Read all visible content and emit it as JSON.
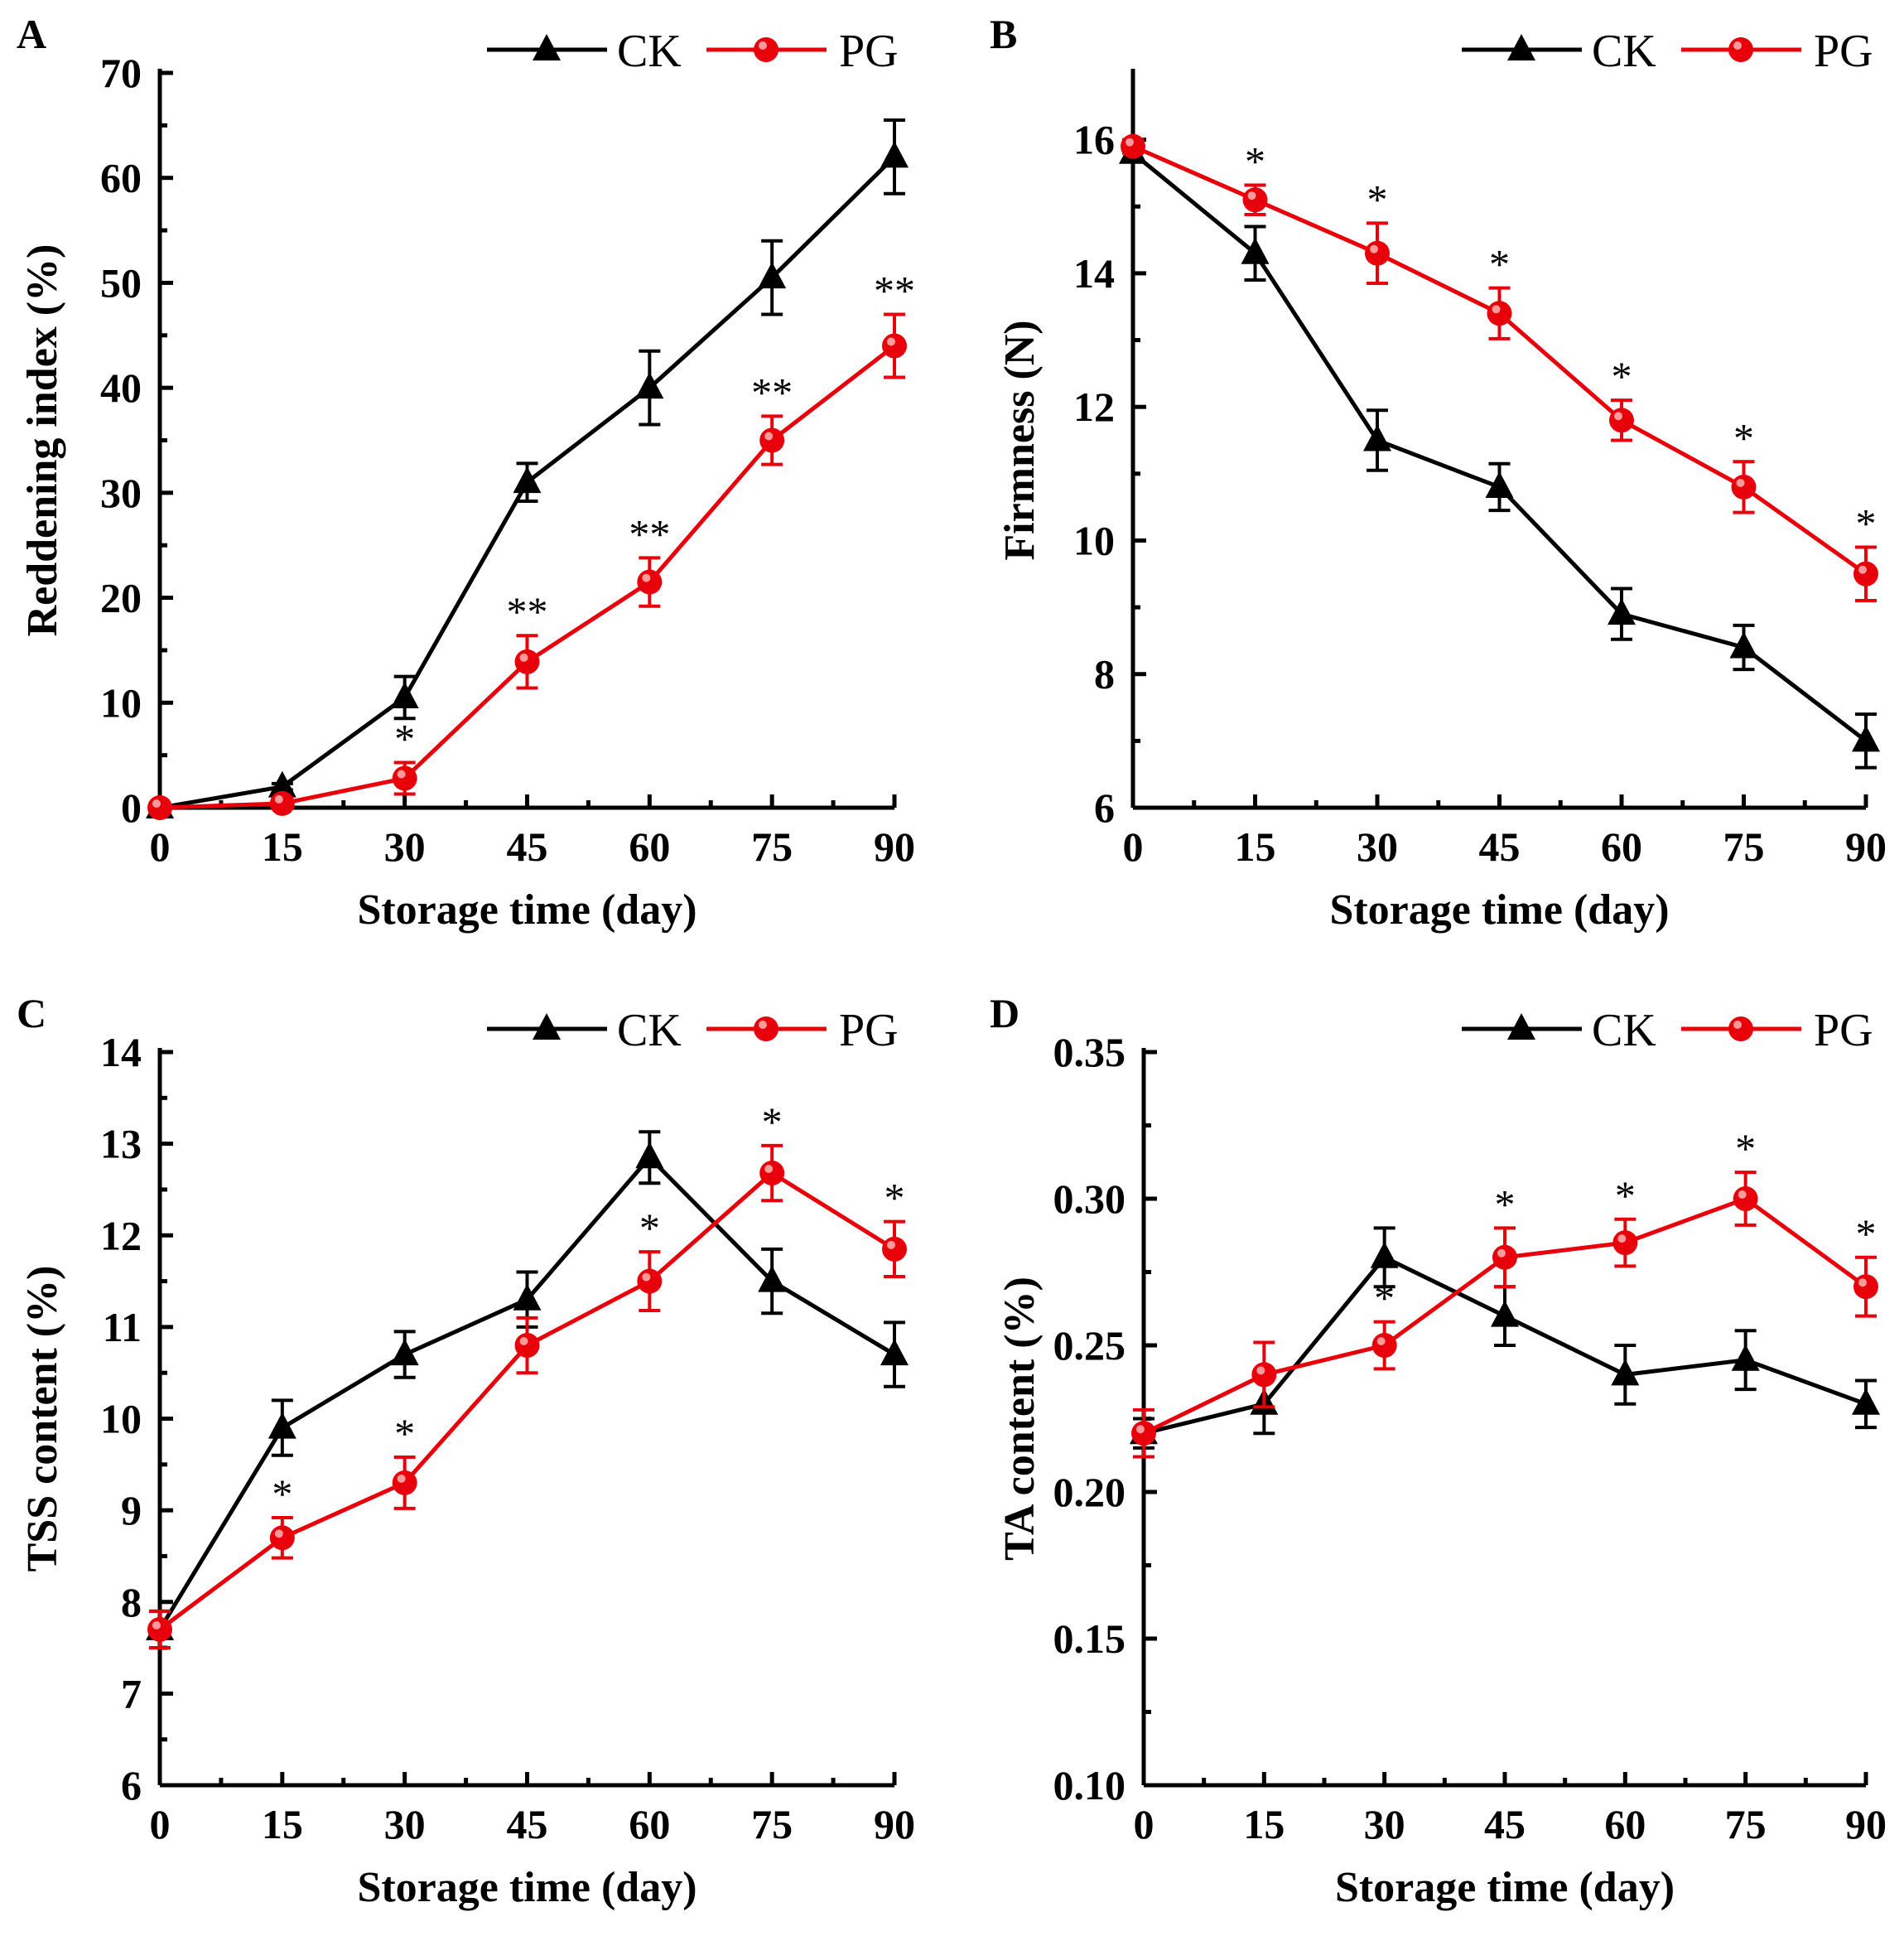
{
  "chart_data": [
    {
      "panel": "A",
      "type": "line",
      "xlabel": "Storage time (day)",
      "ylabel": "Reddening index (%)",
      "x": [
        0,
        15,
        30,
        45,
        60,
        75,
        90
      ],
      "xlim": [
        0,
        90
      ],
      "ylim": [
        0,
        70
      ],
      "yticks": [
        0,
        10,
        20,
        30,
        40,
        50,
        60,
        70
      ],
      "ytick_labels": [
        "0",
        "10",
        "20",
        "30",
        "40",
        "50",
        "60",
        "70"
      ],
      "xtick_labels": [
        "0",
        "15",
        "30",
        "45",
        "60",
        "75",
        "90"
      ],
      "series": [
        {
          "name": "CK",
          "marker": "triangle",
          "color": "#000000",
          "values": [
            0,
            2,
            10.5,
            31,
            40,
            50.5,
            62
          ],
          "errors": [
            0,
            0.3,
            2,
            1.8,
            3.5,
            3.5,
            3.5
          ]
        },
        {
          "name": "PG",
          "marker": "circle",
          "color": "#e8000b",
          "values": [
            0,
            0.4,
            2.8,
            13.9,
            21.5,
            35,
            44
          ],
          "errors": [
            0,
            0.2,
            1.5,
            2.5,
            2.3,
            2.3,
            3
          ]
        }
      ],
      "significance": [
        "",
        "",
        "*",
        "**",
        "**",
        "**",
        "**"
      ]
    },
    {
      "panel": "B",
      "type": "line",
      "xlabel": "Storage time (day)",
      "ylabel": "Firmness (N)",
      "x": [
        0,
        15,
        30,
        45,
        60,
        75,
        90
      ],
      "xlim": [
        0,
        90
      ],
      "ylim": [
        6,
        17
      ],
      "yticks": [
        6,
        8,
        10,
        12,
        14,
        16
      ],
      "ytick_labels": [
        "6",
        "8",
        "10",
        "12",
        "14",
        "16"
      ],
      "xtick_labels": [
        "0",
        "15",
        "30",
        "45",
        "60",
        "75",
        "90"
      ],
      "series": [
        {
          "name": "CK",
          "marker": "triangle",
          "color": "#000000",
          "values": [
            15.8,
            14.3,
            11.5,
            10.8,
            8.9,
            8.4,
            7.0
          ],
          "errors": [
            0.1,
            0.4,
            0.45,
            0.35,
            0.38,
            0.33,
            0.4
          ]
        },
        {
          "name": "PG",
          "marker": "circle",
          "color": "#e8000b",
          "values": [
            15.9,
            15.1,
            14.3,
            13.4,
            11.8,
            10.8,
            9.5
          ],
          "errors": [
            0.1,
            0.22,
            0.45,
            0.38,
            0.3,
            0.38,
            0.4
          ]
        }
      ],
      "significance": [
        "",
        "*",
        "*",
        "*",
        "*",
        "*",
        "*"
      ]
    },
    {
      "panel": "C",
      "type": "line",
      "xlabel": "Storage time (day)",
      "ylabel": "TSS content (%)",
      "x": [
        0,
        15,
        30,
        45,
        60,
        75,
        90
      ],
      "xlim": [
        0,
        90
      ],
      "ylim": [
        6,
        14
      ],
      "yticks": [
        6,
        7,
        8,
        9,
        10,
        11,
        12,
        13,
        14
      ],
      "ytick_labels": [
        "6",
        "7",
        "8",
        "9",
        "10",
        "11",
        "12",
        "13",
        "14"
      ],
      "xtick_labels": [
        "0",
        "15",
        "30",
        "45",
        "60",
        "75",
        "90"
      ],
      "series": [
        {
          "name": "CK",
          "marker": "triangle",
          "color": "#000000",
          "values": [
            7.7,
            9.9,
            10.7,
            11.3,
            12.85,
            11.5,
            10.7
          ],
          "errors": [
            0.2,
            0.3,
            0.25,
            0.3,
            0.28,
            0.35,
            0.35
          ]
        },
        {
          "name": "PG",
          "marker": "circle",
          "color": "#e8000b",
          "values": [
            7.7,
            8.7,
            9.3,
            10.8,
            11.5,
            12.68,
            11.85
          ],
          "errors": [
            0.2,
            0.22,
            0.28,
            0.3,
            0.32,
            0.3,
            0.3
          ]
        }
      ],
      "significance": [
        "",
        "*",
        "*",
        "",
        "*",
        "*",
        "*"
      ]
    },
    {
      "panel": "D",
      "type": "line",
      "xlabel": "Storage time (day)",
      "ylabel": "TA content (%)",
      "x": [
        0,
        15,
        30,
        45,
        60,
        75,
        90
      ],
      "xlim": [
        0,
        90
      ],
      "ylim": [
        0.1,
        0.35
      ],
      "yticks": [
        0.1,
        0.15,
        0.2,
        0.25,
        0.3,
        0.35
      ],
      "ytick_labels": [
        "0.10",
        "0.15",
        "0.20",
        "0.25",
        "0.30",
        "0.35"
      ],
      "xtick_labels": [
        "0",
        "15",
        "30",
        "45",
        "60",
        "75",
        "90"
      ],
      "series": [
        {
          "name": "CK",
          "marker": "triangle",
          "color": "#000000",
          "values": [
            0.22,
            0.23,
            0.28,
            0.26,
            0.24,
            0.245,
            0.23
          ],
          "errors": [
            0.005,
            0.01,
            0.01,
            0.01,
            0.01,
            0.01,
            0.008
          ]
        },
        {
          "name": "PG",
          "marker": "circle",
          "color": "#e8000b",
          "values": [
            0.22,
            0.24,
            0.25,
            0.28,
            0.285,
            0.3,
            0.27
          ],
          "errors": [
            0.008,
            0.011,
            0.008,
            0.01,
            0.008,
            0.009,
            0.01
          ]
        }
      ],
      "significance": [
        "",
        "",
        "*",
        "*",
        "*",
        "*",
        "*"
      ]
    }
  ]
}
